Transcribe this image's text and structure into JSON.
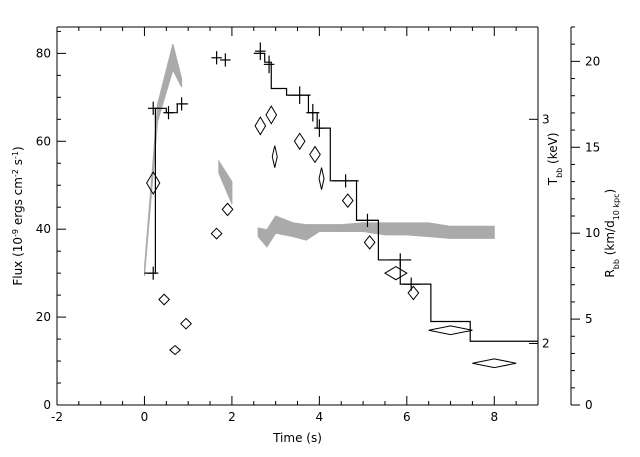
{
  "chart_data": {
    "type": "scatter",
    "xlabel": "Time (s)",
    "ylabel_left": [
      "Flux (10",
      "-9",
      " ergs cm",
      "-2",
      " s",
      "-1",
      ")"
    ],
    "ylabel_tbb": [
      "T",
      "bb",
      " (keV)"
    ],
    "ylabel_rbb": [
      "R",
      "bb",
      " (km/d",
      "10 kpc",
      ")"
    ],
    "xlim": [
      -2,
      9
    ],
    "ylim_flux": [
      0,
      86
    ],
    "ylim_radius": [
      0,
      22
    ],
    "x_ticks": [
      "-2",
      "0",
      "2",
      "4",
      "6",
      "8"
    ],
    "flux_ticks": [
      "0",
      "20",
      "40",
      "60",
      "80"
    ],
    "radius_ticks": [
      "0",
      "5",
      "10",
      "15",
      "20"
    ],
    "tbb_ticks": [
      {
        "label": "2",
        "flux": 14
      },
      {
        "label": "3",
        "flux": 65
      }
    ],
    "flux_histogram": [
      [
        0.0,
        30
      ],
      [
        0.25,
        67.5
      ],
      [
        0.5,
        66.5
      ],
      [
        0.75,
        68.5
      ],
      [
        1.0,
        68.5
      ],
      [
        1.0,
        null
      ],
      [
        2.5,
        80
      ],
      [
        2.75,
        78
      ],
      [
        2.9,
        72
      ],
      [
        3.25,
        70.5
      ],
      [
        3.75,
        66.5
      ],
      [
        3.95,
        63
      ],
      [
        4.25,
        51
      ],
      [
        4.85,
        42
      ],
      [
        5.35,
        33
      ],
      [
        5.85,
        27.5
      ],
      [
        6.55,
        19
      ],
      [
        7.45,
        14.5
      ],
      [
        9.0,
        14.5
      ]
    ],
    "flux_crosses": [
      {
        "x": 0.2,
        "y": 67.5,
        "xerr": 0.12,
        "yerr": 1.5
      },
      {
        "x": 0.55,
        "y": 66.5,
        "xerr": 0.12,
        "yerr": 1.5
      },
      {
        "x": 0.85,
        "y": 68.5,
        "xerr": 0.12,
        "yerr": 1.5
      },
      {
        "x": 0.2,
        "y": 30,
        "xerr": 0.12,
        "yerr": 1.5
      },
      {
        "x": 1.65,
        "y": 79,
        "xerr": 0.12,
        "yerr": 1.5
      },
      {
        "x": 1.85,
        "y": 78.5,
        "xerr": 0.12,
        "yerr": 1.5
      },
      {
        "x": 2.65,
        "y": 80.5,
        "xerr": 0.12,
        "yerr": 2
      },
      {
        "x": 2.85,
        "y": 77.5,
        "xerr": 0.12,
        "yerr": 2
      },
      {
        "x": 3.55,
        "y": 70.5,
        "xerr": 0.25,
        "yerr": 2
      },
      {
        "x": 3.85,
        "y": 66.5,
        "xerr": 0.15,
        "yerr": 2
      },
      {
        "x": 4.0,
        "y": 63,
        "xerr": 0.12,
        "yerr": 2
      },
      {
        "x": 4.6,
        "y": 51,
        "xerr": 0.3,
        "yerr": 1.5
      },
      {
        "x": 5.1,
        "y": 42,
        "xerr": 0.25,
        "yerr": 1.5
      },
      {
        "x": 5.85,
        "y": 33,
        "xerr": 0.25,
        "yerr": 1.5
      },
      {
        "x": 6.1,
        "y": 27.5,
        "xerr": 0.2,
        "yerr": 1.5
      }
    ],
    "temperature_diamonds": [
      {
        "x": 0.2,
        "y": 50.5,
        "hw": 0.15,
        "hh": 2.5
      },
      {
        "x": 0.45,
        "y": 24,
        "hw": 0.12,
        "hh": 1.2
      },
      {
        "x": 0.7,
        "y": 12.5,
        "hw": 0.12,
        "hh": 1.0
      },
      {
        "x": 0.95,
        "y": 18.5,
        "hw": 0.12,
        "hh": 1.2
      },
      {
        "x": 1.65,
        "y": 39,
        "hw": 0.12,
        "hh": 1.2
      },
      {
        "x": 1.9,
        "y": 44.5,
        "hw": 0.12,
        "hh": 1.4
      },
      {
        "x": 2.65,
        "y": 63.5,
        "hw": 0.12,
        "hh": 2.0
      },
      {
        "x": 2.9,
        "y": 66,
        "hw": 0.12,
        "hh": 2.0
      },
      {
        "x": 2.98,
        "y": 56.5,
        "hw": 0.04,
        "hh": 2.5
      },
      {
        "x": 3.55,
        "y": 60,
        "hw": 0.12,
        "hh": 1.8
      },
      {
        "x": 3.9,
        "y": 57,
        "hw": 0.12,
        "hh": 1.8
      },
      {
        "x": 4.05,
        "y": 51.5,
        "hw": 0.05,
        "hh": 2.5
      },
      {
        "x": 4.65,
        "y": 46.5,
        "hw": 0.12,
        "hh": 1.5
      },
      {
        "x": 5.15,
        "y": 37,
        "hw": 0.12,
        "hh": 1.5
      },
      {
        "x": 5.75,
        "y": 30,
        "hw": 0.25,
        "hh": 1.5
      },
      {
        "x": 6.15,
        "y": 25.5,
        "hw": 0.12,
        "hh": 1.5
      },
      {
        "x": 7.0,
        "y": 17,
        "hw": 0.5,
        "hh": 1.0
      },
      {
        "x": 8.0,
        "y": 9.5,
        "hw": 0.5,
        "hh": 1.0
      }
    ],
    "radius_bands": [
      {
        "x": [
          0.0,
          0.3,
          0.65,
          0.85
        ],
        "lo": [
          7.5,
          16.5,
          19.5,
          18.5
        ],
        "hi": [
          8.0,
          17.5,
          21.0,
          19.0
        ]
      },
      {
        "x": [
          1.7,
          2.0
        ],
        "lo": [
          13.5,
          11.7
        ],
        "hi": [
          14.2,
          13.0
        ]
      },
      {
        "x": [
          2.6,
          2.8,
          3.0,
          3.4,
          3.7,
          4.0,
          4.5,
          5.0,
          5.5,
          6.0,
          6.5,
          7.0,
          7.5,
          8.0
        ],
        "lo": [
          9.8,
          9.2,
          10.0,
          9.8,
          9.6,
          10.1,
          10.1,
          10.1,
          9.9,
          9.9,
          9.8,
          9.7,
          9.7,
          9.7
        ],
        "hi": [
          10.3,
          10.2,
          11.0,
          10.6,
          10.5,
          10.5,
          10.5,
          10.6,
          10.6,
          10.6,
          10.6,
          10.4,
          10.4,
          10.4
        ]
      }
    ],
    "grid": false,
    "legend": "none"
  }
}
